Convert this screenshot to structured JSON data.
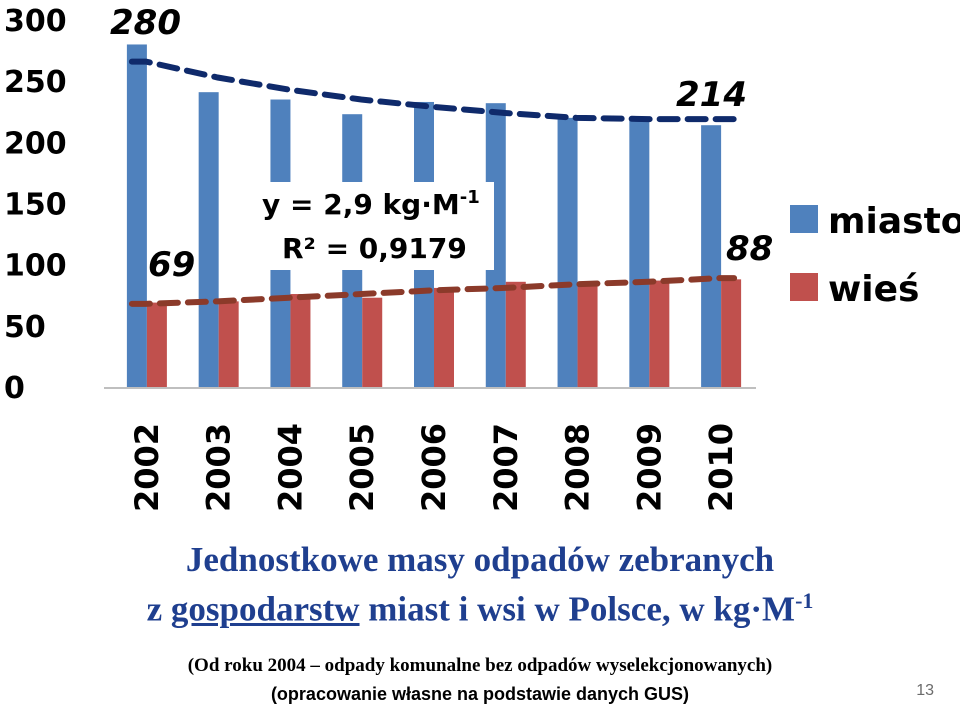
{
  "chart_data": {
    "type": "bar",
    "categories": [
      "2002",
      "2003",
      "2004",
      "2005",
      "2006",
      "2007",
      "2008",
      "2009",
      "2010"
    ],
    "series": [
      {
        "name": "miasto",
        "color": "#4f81bd",
        "values": [
          280,
          241,
          235,
          223,
          233,
          232,
          220,
          218,
          214
        ]
      },
      {
        "name": "wieś",
        "color": "#c0504d",
        "values": [
          69,
          70,
          76,
          73,
          81,
          86,
          85,
          87,
          88
        ]
      }
    ],
    "trendlines": [
      {
        "series": "miasto",
        "color": "#0f2a6b",
        "style": "dashed",
        "values": [
          266,
          253,
          243,
          235,
          229,
          224,
          220,
          219,
          219
        ]
      },
      {
        "series": "wieś",
        "color": "#8b3a2a",
        "style": "dashed",
        "values": [
          68,
          70,
          73,
          76,
          79,
          81,
          84,
          86,
          89
        ]
      }
    ],
    "ylim": [
      0,
      300
    ],
    "yticks": [
      0,
      50,
      100,
      150,
      200,
      250,
      300
    ],
    "annotations": [
      "280",
      "214",
      "69",
      "88"
    ],
    "equation": {
      "line1": "y = 2,9 kg·M",
      "line1_sup": "-1",
      "line2": "R² = 0,9179"
    },
    "legend_position": "right",
    "grid": false,
    "xlabel": "",
    "ylabel": ""
  },
  "title": {
    "line1": "Jednostkowe masy odpadów zebranych",
    "line2_prefix": "z ",
    "line2_underlined": "gospodarstw",
    "line2_rest": " miast i wsi w Polsce, w kg·M",
    "line2_sup": "-1"
  },
  "note": "(Od roku 2004 – odpady komunalne bez odpadów wyselekcjonowanych)",
  "source": "(opracowanie własne na podstawie danych GUS)",
  "page_number": "13"
}
